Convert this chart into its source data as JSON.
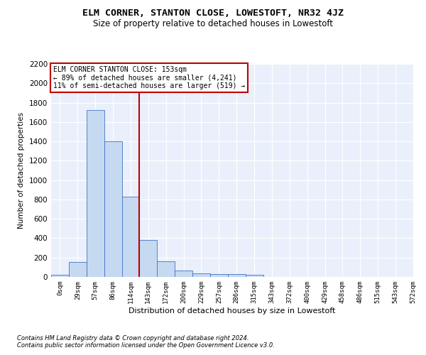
{
  "title": "ELM CORNER, STANTON CLOSE, LOWESTOFT, NR32 4JZ",
  "subtitle": "Size of property relative to detached houses in Lowestoft",
  "xlabel": "Distribution of detached houses by size in Lowestoft",
  "ylabel": "Number of detached properties",
  "bar_values": [
    20,
    155,
    1720,
    1400,
    830,
    380,
    165,
    65,
    40,
    30,
    30,
    20,
    0,
    0,
    0,
    0,
    0,
    0,
    0
  ],
  "tick_labels": [
    "0sqm",
    "29sqm",
    "57sqm",
    "86sqm",
    "114sqm",
    "143sqm",
    "172sqm",
    "200sqm",
    "229sqm",
    "257sqm",
    "286sqm",
    "315sqm",
    "343sqm",
    "372sqm",
    "400sqm",
    "429sqm",
    "458sqm",
    "486sqm",
    "515sqm",
    "543sqm",
    "572sqm"
  ],
  "bar_color": "#c5d9f0",
  "bar_edge_color": "#4472c4",
  "vline_x": 4.5,
  "vline_color": "#c00000",
  "annotation_box_text": "ELM CORNER STANTON CLOSE: 153sqm\n← 89% of detached houses are smaller (4,241)\n11% of semi-detached houses are larger (519) →",
  "ylim": [
    0,
    2200
  ],
  "yticks": [
    0,
    200,
    400,
    600,
    800,
    1000,
    1200,
    1400,
    1600,
    1800,
    2000,
    2200
  ],
  "bg_color": "#eaf0fb",
  "footer_line1": "Contains HM Land Registry data © Crown copyright and database right 2024.",
  "footer_line2": "Contains public sector information licensed under the Open Government Licence v3.0.",
  "title_fontsize": 9.5,
  "subtitle_fontsize": 8.5,
  "ylabel_fontsize": 7.5,
  "xlabel_fontsize": 8,
  "annot_fontsize": 7,
  "ytick_fontsize": 7.5,
  "xtick_fontsize": 6.5
}
